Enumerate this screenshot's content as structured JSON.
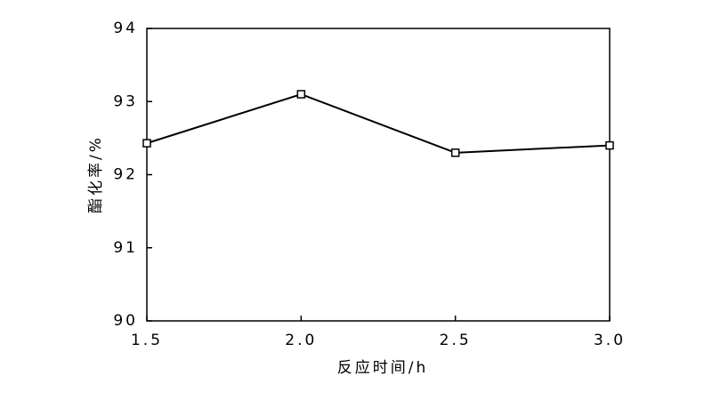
{
  "chart_data": {
    "type": "line",
    "x_label": "反应时间/h",
    "y_label": "酯化率/%",
    "x": [
      1.5,
      2.0,
      2.5,
      3.0
    ],
    "values": [
      92.43,
      93.1,
      92.3,
      92.4
    ],
    "color": "#000000",
    "xlim": [
      1.5,
      3.0
    ],
    "xticks": [
      1.5,
      {
        "value": 2,
        "label": "2.0"
      },
      2.5,
      {
        "value": 3,
        "label": "3.0"
      }
    ],
    "ylim": [
      90,
      94
    ],
    "yticks": [
      90,
      91,
      92,
      93,
      94
    ],
    "grid": false
  }
}
